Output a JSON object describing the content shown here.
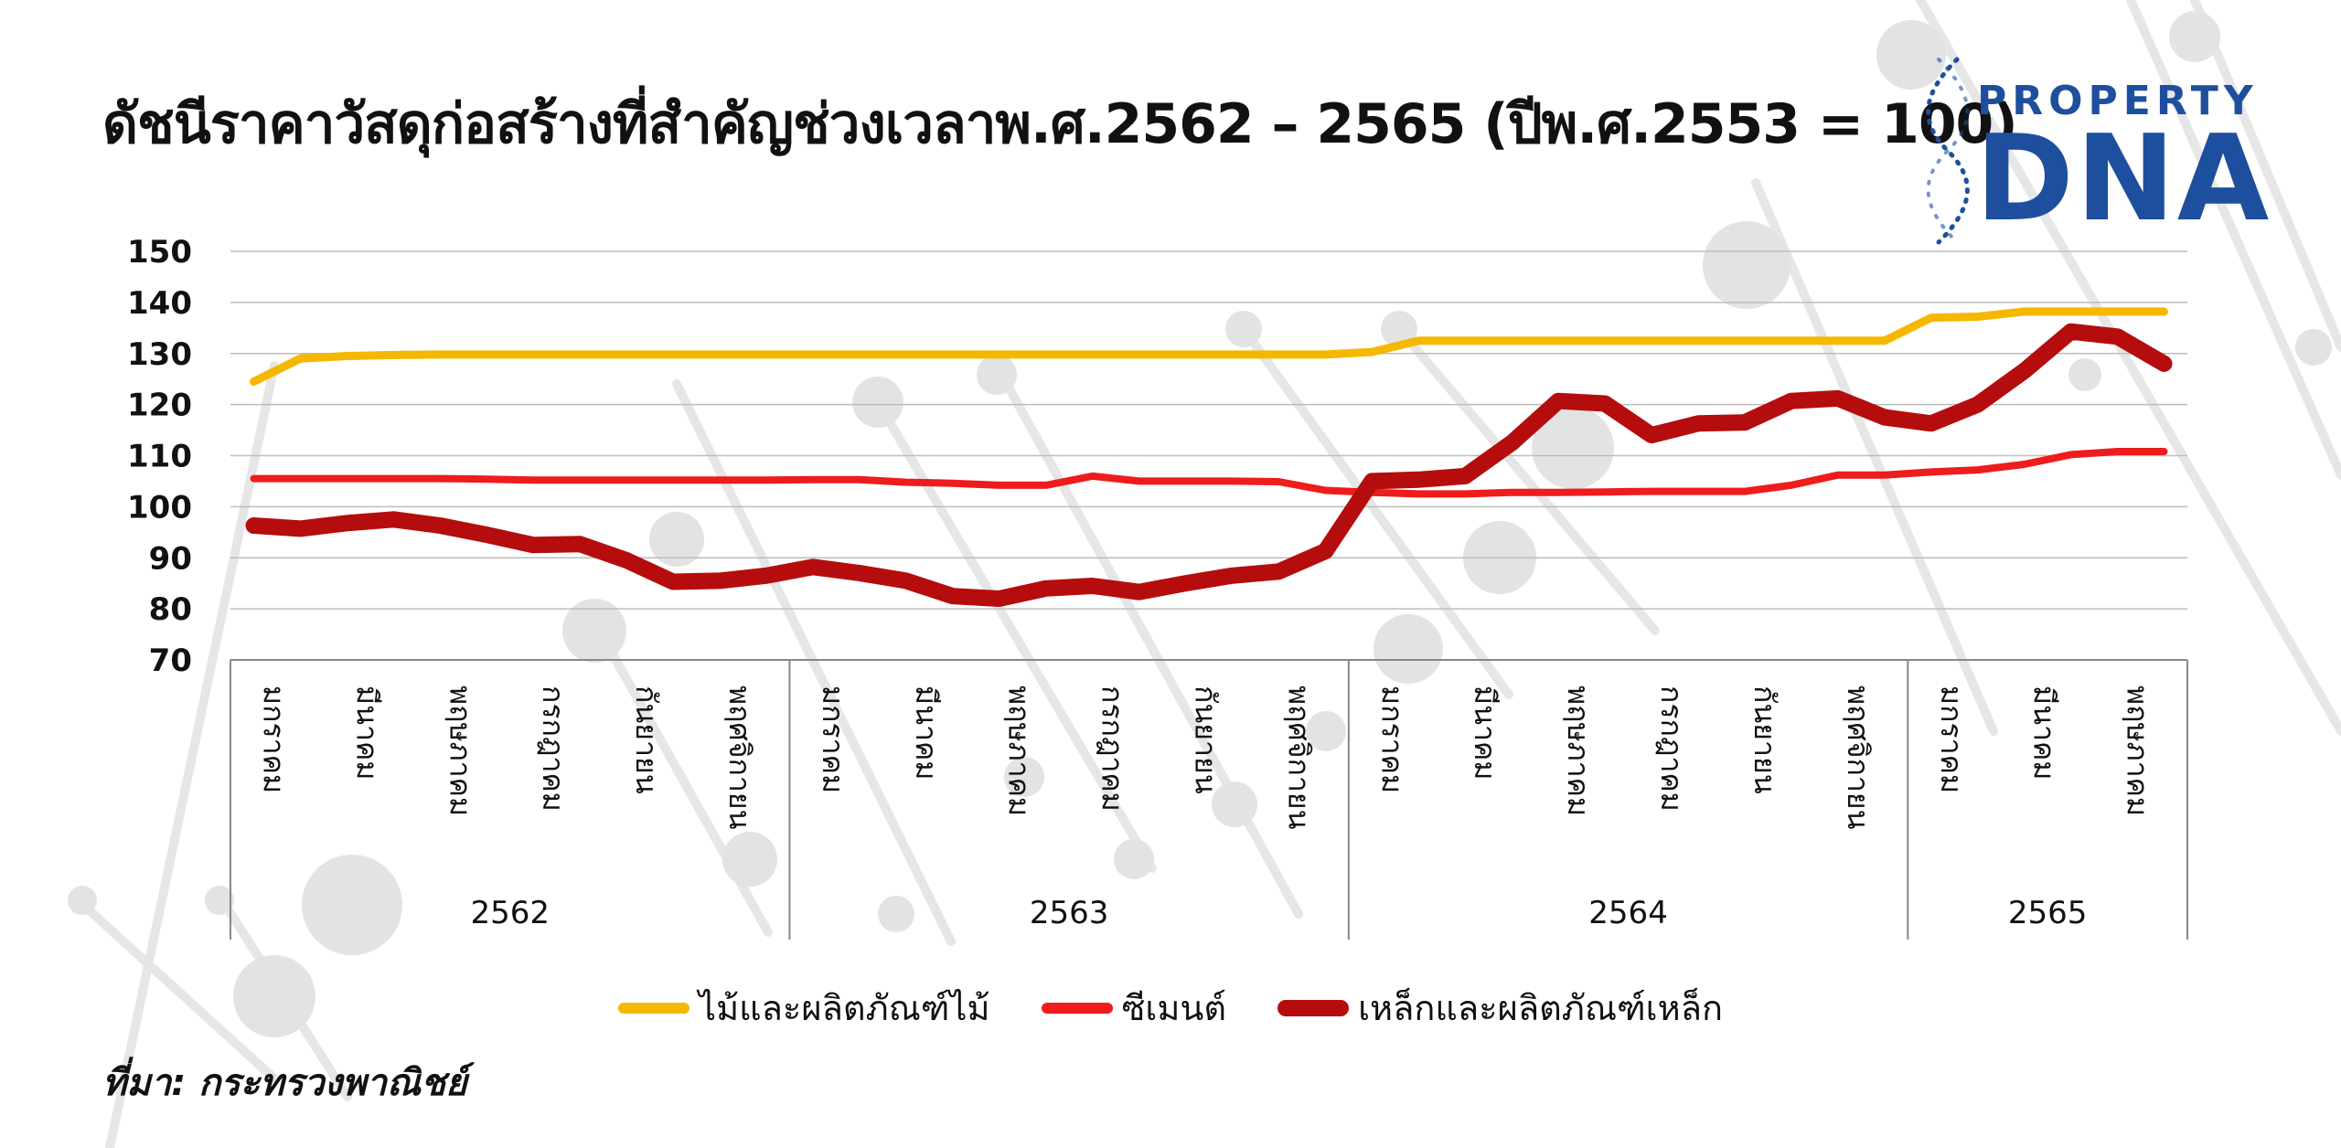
{
  "title": "ดัชนีราคาวัสดุก่อสร้างที่สำคัญช่วงเวลาพ.ศ.2562 – 2565 (ปีพ.ศ.2553 = 100)",
  "logo": {
    "top": "PROPERTY",
    "main": "DNA",
    "color": "#1e4f9e"
  },
  "source": "ที่มา: กระทรวงพาณิชย์",
  "chart_data": {
    "type": "line",
    "title": "ดัชนีราคาวัสดุก่อสร้างที่สำคัญช่วงเวลาพ.ศ.2562 – 2565 (ปีพ.ศ.2553 = 100)",
    "ylim": [
      70,
      150
    ],
    "yticks": [
      70,
      80,
      90,
      100,
      110,
      120,
      130,
      140,
      150
    ],
    "grid": true,
    "legend_position": "bottom",
    "month_labels": [
      "มกราคม",
      "มีนาคม",
      "พฤษภาคม",
      "กรกฎาคม",
      "กันยายน",
      "พฤศจิกายน"
    ],
    "years": [
      {
        "label": "2562",
        "months": 12
      },
      {
        "label": "2563",
        "months": 12
      },
      {
        "label": "2564",
        "months": 12
      },
      {
        "label": "2565",
        "months": 6
      }
    ],
    "series": [
      {
        "name": "ไม้และผลิตภัณฑ์ไม้",
        "color": "#f5b800",
        "values": [
          124.5,
          129,
          129.5,
          129.7,
          129.8,
          129.8,
          129.8,
          129.8,
          129.8,
          129.8,
          129.8,
          129.8,
          129.8,
          129.8,
          129.8,
          129.8,
          129.8,
          129.8,
          129.8,
          129.8,
          129.8,
          129.8,
          129.8,
          129.8,
          130.3,
          132.5,
          132.5,
          132.5,
          132.5,
          132.5,
          132.5,
          132.5,
          132.5,
          132.5,
          132.5,
          132.5,
          137,
          137.2,
          138.2,
          138.2,
          138.2,
          138.2
        ]
      },
      {
        "name": "ซีเมนต์",
        "color": "#ee1c1c",
        "values": [
          105.5,
          105.5,
          105.5,
          105.5,
          105.5,
          105.4,
          105.2,
          105.2,
          105.2,
          105.2,
          105.2,
          105.2,
          105.3,
          105.3,
          104.8,
          104.6,
          104.2,
          104.2,
          106,
          105,
          105,
          105,
          104.9,
          103.2,
          102.8,
          102.5,
          102.5,
          102.8,
          102.8,
          102.9,
          103,
          103,
          103,
          104.2,
          106.2,
          106.2,
          106.8,
          107.2,
          108.3,
          110.2,
          110.8,
          110.8
        ]
      },
      {
        "name": "เหล็กและผลิตภัณฑ์เหล็ก",
        "color": "#b50d0d",
        "values": [
          96.3,
          95.7,
          96.8,
          97.5,
          96.3,
          94.5,
          92.5,
          92.7,
          89.5,
          85.3,
          85.5,
          86.5,
          88.2,
          87,
          85.5,
          82.5,
          82,
          84,
          84.5,
          83.3,
          85,
          86.5,
          87.3,
          91.3,
          105,
          105.3,
          106,
          112.5,
          120.7,
          120.2,
          114,
          116.3,
          116.5,
          120.7,
          121.2,
          117.5,
          116.3,
          120,
          126.6,
          134.3,
          133.3,
          128
        ]
      }
    ]
  }
}
